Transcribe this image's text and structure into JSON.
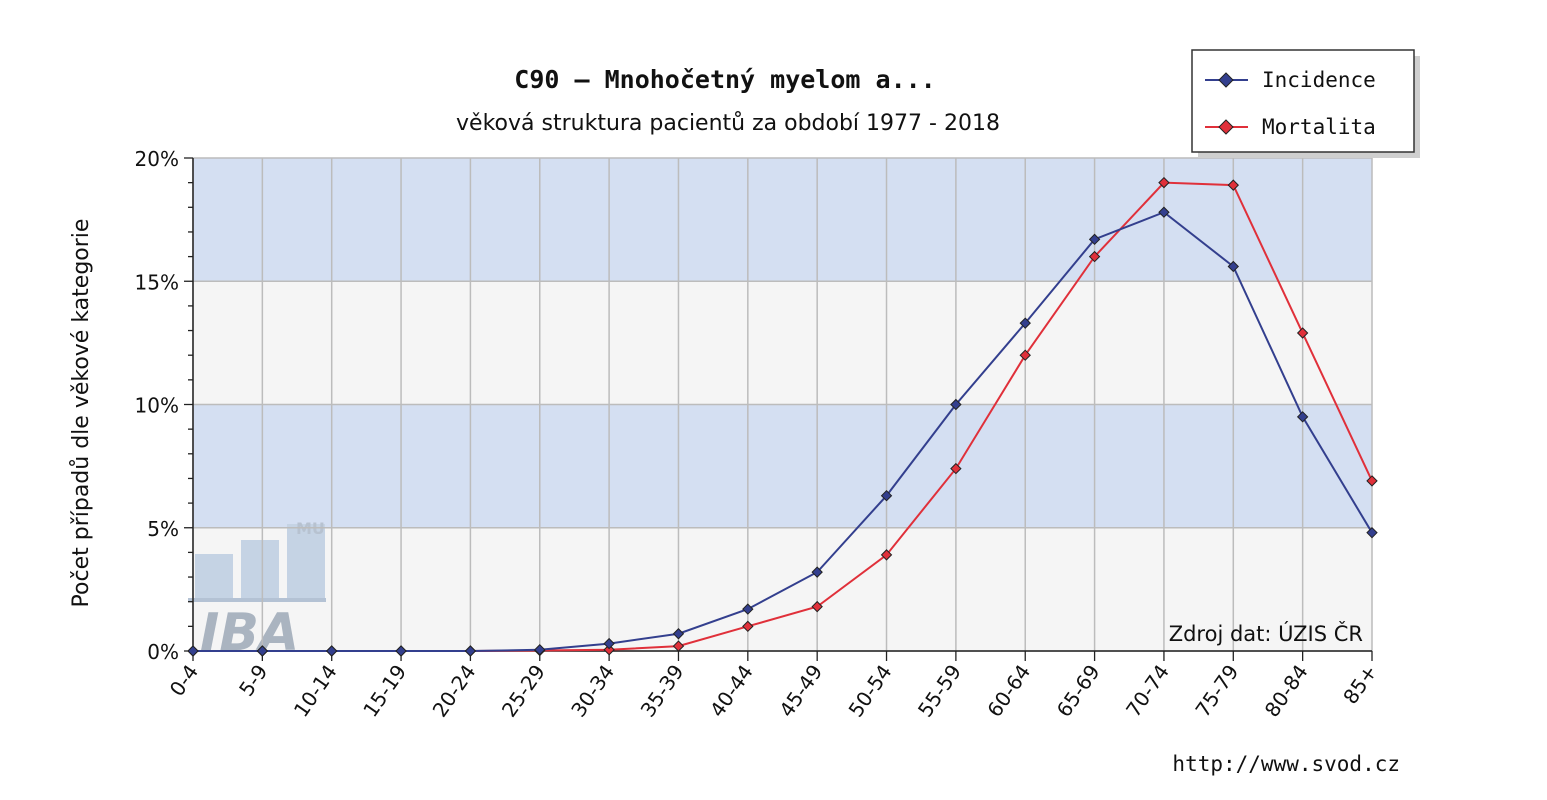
{
  "chart_data": {
    "type": "line",
    "title": "C90 – Mnohočetný myelom a...",
    "subtitle": "věková struktura pacientů za období 1977 - 2018",
    "ylabel": "Počet případů dle věkové kategorie",
    "xlabel": "",
    "categories": [
      "0-4",
      "5-9",
      "10-14",
      "15-19",
      "20-24",
      "25-29",
      "30-34",
      "35-39",
      "40-44",
      "45-49",
      "50-54",
      "55-59",
      "60-64",
      "65-69",
      "70-74",
      "75-79",
      "80-84",
      "85+"
    ],
    "ylim": [
      0,
      20
    ],
    "yticks": [
      0,
      5,
      10,
      15,
      20
    ],
    "ytick_labels": [
      "0%",
      "5%",
      "10%",
      "15%",
      "20%"
    ],
    "series": [
      {
        "name": "Incidence",
        "color": "#333f8e",
        "values": [
          0,
          0,
          0,
          0,
          0,
          0.05,
          0.3,
          0.7,
          1.7,
          3.2,
          6.3,
          10.0,
          13.3,
          16.7,
          17.8,
          15.6,
          9.5,
          4.8
        ]
      },
      {
        "name": "Mortalita",
        "color": "#e0303a",
        "values": [
          0,
          0,
          0,
          0,
          0,
          0.02,
          0.05,
          0.2,
          1.0,
          1.8,
          3.9,
          7.4,
          12.0,
          16.0,
          19.0,
          18.9,
          12.9,
          6.9
        ]
      }
    ],
    "legend_position": "top-right",
    "grid": true,
    "band_colors": [
      "#d4dff2",
      "#f5f5f5"
    ]
  },
  "watermark": {
    "text": "IBA",
    "small": "MU"
  },
  "source_label": "Zdroj dat: ÚZIS ČR",
  "url_label": "http://www.svod.cz"
}
